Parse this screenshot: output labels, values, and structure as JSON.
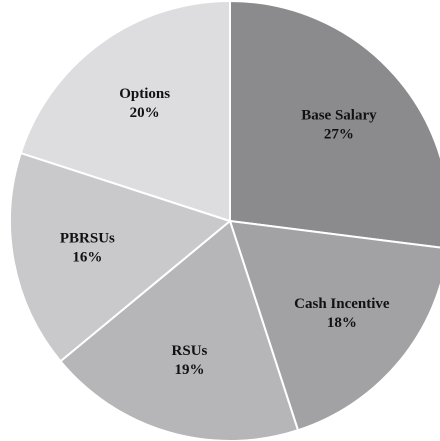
{
  "chart_data": {
    "type": "pie",
    "categories": [
      "Base Salary",
      "Cash Incentive",
      "RSUs",
      "PBRSUs",
      "Options"
    ],
    "values": [
      27,
      18,
      19,
      16,
      20
    ],
    "value_labels": [
      "27%",
      "18%",
      "19%",
      "16%",
      "20%"
    ],
    "colors": [
      "#8b8b8d",
      "#a2a2a4",
      "#b6b6b8",
      "#c9c9cb",
      "#dddddf"
    ]
  }
}
